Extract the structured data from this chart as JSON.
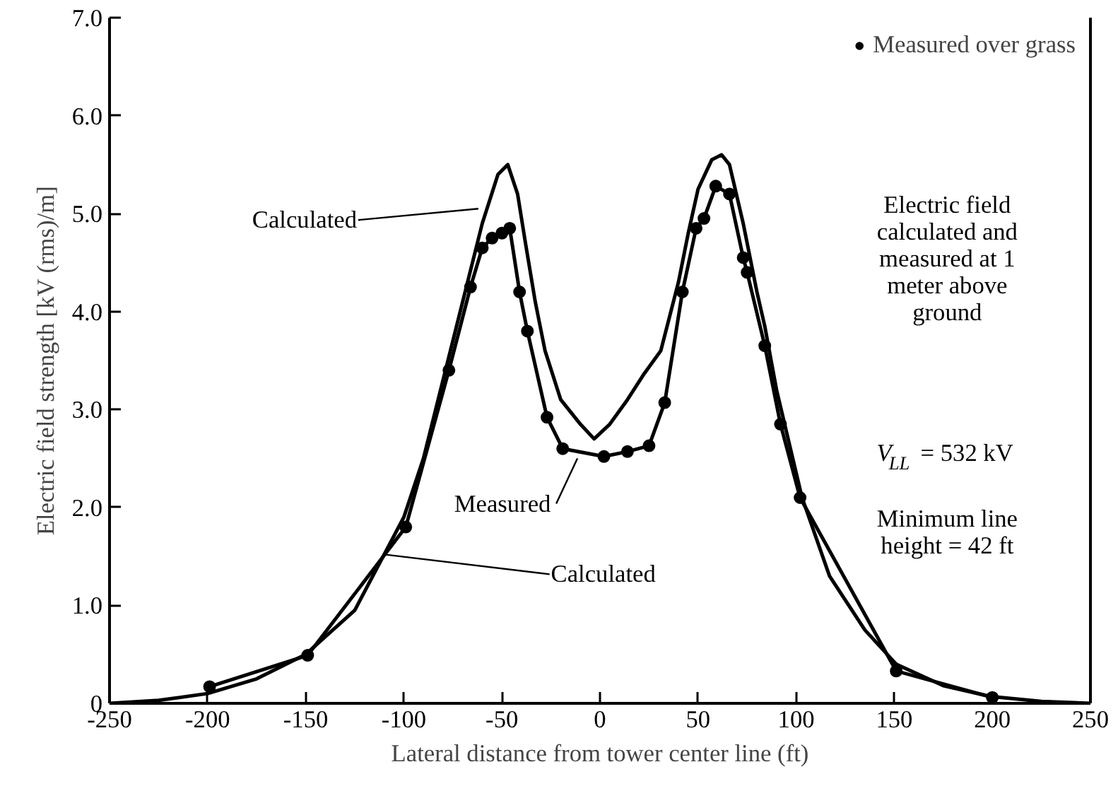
{
  "chart_data": {
    "type": "line",
    "xlabel": "Lateral distance from tower center line (ft)",
    "ylabel": "Electric field strength [kV (rms)/m]",
    "xlim": [
      -250,
      250
    ],
    "xticks": [
      -250,
      -200,
      -150,
      -100,
      -50,
      0,
      50,
      100,
      150,
      200,
      250
    ],
    "ylim": [
      0,
      7
    ],
    "yticks": [
      0,
      {
        "value": 1,
        "label": "1.0"
      },
      {
        "value": 2,
        "label": "2.0"
      },
      {
        "value": 3,
        "label": "3.0"
      },
      {
        "value": 4,
        "label": "4.0"
      },
      {
        "value": 5,
        "label": "5.0"
      },
      {
        "value": 6,
        "label": "6.0"
      },
      {
        "value": 7,
        "label": "7.0"
      }
    ],
    "grid": false,
    "legend": "top right",
    "series": [
      {
        "color": "#000000",
        "marker": "none",
        "x": [
          -250,
          -225,
          -200,
          -175,
          -150,
          -125,
          -100,
          -90,
          -80,
          -70,
          -60,
          -52,
          -47,
          -42,
          -38,
          -33,
          -28,
          -20,
          -10,
          -3,
          5,
          14,
          22,
          31,
          40,
          45,
          50,
          57,
          62,
          66,
          73,
          80,
          84,
          90,
          103,
          117,
          135,
          151,
          175,
          199,
          225,
          250
        ],
        "values": [
          0,
          0.03,
          0.1,
          0.25,
          0.5,
          0.95,
          1.9,
          2.5,
          3.3,
          4.1,
          4.9,
          5.4,
          5.5,
          5.2,
          4.7,
          4.1,
          3.6,
          3.1,
          2.85,
          2.7,
          2.85,
          3.1,
          3.35,
          3.6,
          4.3,
          4.8,
          5.25,
          5.55,
          5.6,
          5.5,
          4.9,
          4.2,
          3.85,
          3.2,
          2.1,
          1.3,
          0.75,
          0.4,
          0.18,
          0.07,
          0.02,
          0
        ]
      },
      {
        "name": "Measured over grass",
        "color": "#000000",
        "marker": "circle",
        "x": [
          -199,
          -149,
          -99,
          -77,
          -66,
          -60,
          -55,
          -50,
          -46,
          -41,
          -37,
          -27,
          -19,
          2,
          14,
          25,
          33,
          42,
          49,
          53,
          59,
          66,
          73,
          75,
          84,
          92,
          102,
          151,
          200
        ],
        "values": [
          0.17,
          0.49,
          1.8,
          3.4,
          4.25,
          4.65,
          4.75,
          4.8,
          4.85,
          4.2,
          3.8,
          2.92,
          2.6,
          2.52,
          2.57,
          2.63,
          3.07,
          4.2,
          4.85,
          4.95,
          5.28,
          5.2,
          4.55,
          4.4,
          3.65,
          2.85,
          2.1,
          0.33,
          0.06
        ]
      }
    ],
    "annotations": [
      {
        "text": "Calculated",
        "x": -62,
        "y": 5.05
      },
      {
        "text": "Measured",
        "x": -11.5,
        "y": 2.5
      },
      {
        "text": "Calculated",
        "x": -110,
        "y": 1.52
      },
      "Electric field\ncalculated and\nmeasured at 1\nmeter above\nground",
      "V$_{LL}$ = 532 kV",
      "Minimum line\nheight = 42 ft"
    ]
  }
}
